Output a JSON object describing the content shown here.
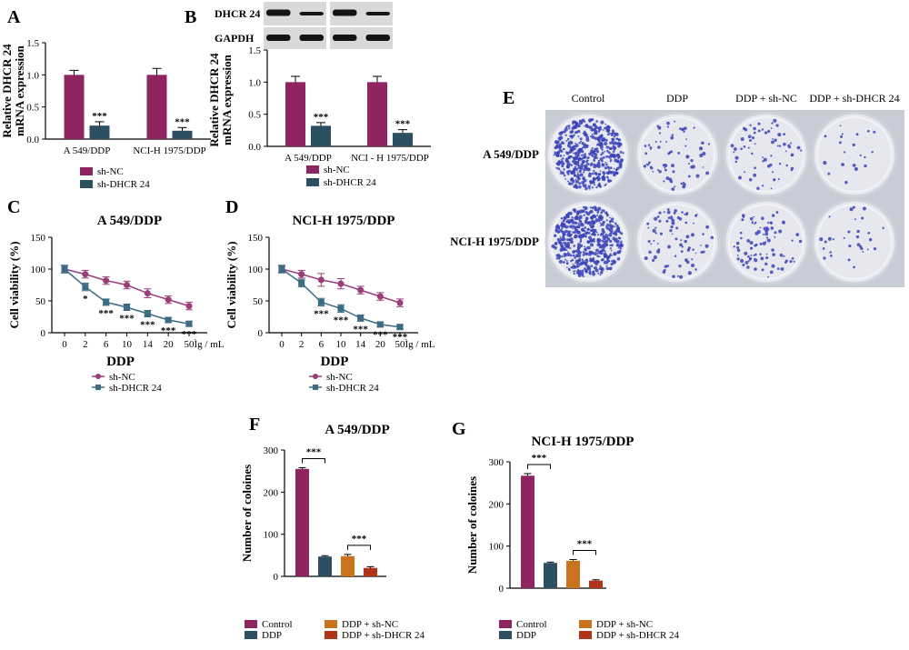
{
  "colors": {
    "sh_nc": "#8e2460",
    "sh_dhcr": "#2c4f61",
    "line_nc": "#9a3e7a",
    "line_dhcr": "#3b6c84",
    "control": "#8e2460",
    "ddp": "#2c4f61",
    "ddp_shnc": "#c9731f",
    "ddp_shdhcr": "#b13418",
    "dish_rim": "#cfd2da",
    "dish_fill": "#e6e8ee",
    "colony": "#3b43b8"
  },
  "panel_labels": {
    "A": "A",
    "B": "B",
    "C": "C",
    "D": "D",
    "E": "E",
    "F": "F",
    "G": "G"
  },
  "blot": {
    "dhcr": "DHCR 24",
    "gapdh": "GAPDH"
  },
  "panel_e": {
    "columns": [
      "Control",
      "DDP",
      "DDP + sh-NC",
      "DDP + sh-DHCR 24"
    ],
    "rows": [
      "A 549/DDP",
      "NCI-H 1975/DDP"
    ],
    "colony_counts": [
      [
        520,
        70,
        65,
        20
      ],
      [
        520,
        80,
        90,
        30
      ]
    ]
  },
  "chart_data": [
    {
      "panel": "A",
      "type": "bar",
      "ylabel": "Relative DHCR 24 mRNA expression",
      "ylim": [
        0,
        1.5
      ],
      "yticks": [
        "0.0",
        "0.5",
        "1.0",
        "1.5"
      ],
      "categories": [
        "A 549/DDP",
        "NCI-H 1975/DDP"
      ],
      "series": [
        {
          "name": "sh-NC",
          "values": [
            1.0,
            1.0
          ],
          "err": [
            0.07,
            0.1
          ]
        },
        {
          "name": "sh-DHCR 24",
          "values": [
            0.21,
            0.13
          ],
          "err": [
            0.06,
            0.05
          ]
        }
      ],
      "annotations": [
        {
          "category": 0,
          "series": 1,
          "text": "***"
        },
        {
          "category": 1,
          "series": 1,
          "text": "***"
        }
      ],
      "legend": [
        "sh-NC",
        "sh-DHCR 24"
      ]
    },
    {
      "panel": "B",
      "type": "bar",
      "ylabel": "Relative DHCR 24 mRNA expression",
      "ylim": [
        0,
        1.5
      ],
      "yticks": [
        "0.0",
        "0.5",
        "1.0",
        "1.5"
      ],
      "categories": [
        "A 549/DDP",
        "NCI - H 1975/DDP"
      ],
      "series": [
        {
          "name": "sh-NC",
          "values": [
            1.0,
            1.0
          ],
          "err": [
            0.09,
            0.09
          ]
        },
        {
          "name": "sh-DHCR 24",
          "values": [
            0.32,
            0.21
          ],
          "err": [
            0.05,
            0.05
          ]
        }
      ],
      "annotations": [
        {
          "category": 0,
          "series": 1,
          "text": "***"
        },
        {
          "category": 1,
          "series": 1,
          "text": "***"
        }
      ],
      "legend": [
        "sh-NC",
        "sh-DHCR 24"
      ]
    },
    {
      "panel": "C",
      "type": "line",
      "title": "A 549/DDP",
      "ylabel": "Cell viability (%)",
      "xlabel": "DDP",
      "xunit": "Ìg / mL",
      "ylim": [
        0,
        150
      ],
      "yticks": [
        "0",
        "50",
        "100",
        "150"
      ],
      "categories": [
        "0",
        "2",
        "6",
        "10",
        "14",
        "20",
        "50"
      ],
      "series": [
        {
          "name": "sh-NC",
          "values": [
            100,
            92,
            82,
            75,
            62,
            52,
            42
          ],
          "err": [
            6,
            6,
            6,
            6,
            7,
            6,
            6
          ]
        },
        {
          "name": "sh-DHCR 24",
          "values": [
            100,
            72,
            48,
            40,
            30,
            20,
            14
          ],
          "err": [
            6,
            6,
            5,
            5,
            5,
            4,
            4
          ]
        }
      ],
      "annotations": [
        "",
        "*",
        "***",
        "***",
        "***",
        "***",
        "***"
      ],
      "legend": [
        "sh-NC",
        "sh-DHCR 24"
      ]
    },
    {
      "panel": "D",
      "type": "line",
      "title": "NCI-H 1975/DDP",
      "ylabel": "Cell viability (%)",
      "xlabel": "DDP",
      "xunit": "Ìg / mL",
      "ylim": [
        0,
        150
      ],
      "yticks": [
        "0",
        "50",
        "100",
        "150"
      ],
      "categories": [
        "0",
        "2",
        "6",
        "10",
        "14",
        "20",
        "50"
      ],
      "series": [
        {
          "name": "sh-NC",
          "values": [
            100,
            92,
            83,
            77,
            67,
            57,
            47
          ],
          "err": [
            5,
            6,
            10,
            8,
            6,
            6,
            6
          ]
        },
        {
          "name": "sh-DHCR 24",
          "values": [
            100,
            78,
            48,
            38,
            23,
            13,
            9
          ],
          "err": [
            6,
            6,
            6,
            6,
            5,
            4,
            3
          ]
        }
      ],
      "annotations": [
        "",
        "",
        "***",
        "***",
        "***",
        "***",
        "***"
      ],
      "legend": [
        "sh-NC",
        "sh-DHCR 24"
      ]
    },
    {
      "panel": "F",
      "type": "bar",
      "title": "A 549/DDP",
      "ylabel": "Number of coloines",
      "ylim": [
        0,
        300
      ],
      "yticks": [
        "0",
        "100",
        "200",
        "300"
      ],
      "categories": [
        "Control",
        "DDP",
        "DDP + sh-NC",
        "DDP + sh-DHCR 24"
      ],
      "values": [
        255,
        47,
        48,
        20
      ],
      "err": [
        3,
        2,
        4,
        3
      ],
      "comparisons": [
        {
          "from": 0,
          "to": 1,
          "text": "***"
        },
        {
          "from": 2,
          "to": 3,
          "text": "***"
        }
      ],
      "legend": [
        "Control",
        "DDP",
        "DDP + sh-NC",
        "DDP + sh-DHCR 24"
      ]
    },
    {
      "panel": "G",
      "type": "bar",
      "title": "NCI-H 1975/DDP",
      "ylabel": "Number of coloines",
      "ylim": [
        0,
        300
      ],
      "yticks": [
        "0",
        "100",
        "200",
        "300"
      ],
      "categories": [
        "Control",
        "DDP",
        "DDP + sh-NC",
        "DDP + sh-DHCR 24"
      ],
      "values": [
        267,
        60,
        65,
        18
      ],
      "err": [
        5,
        2,
        3,
        2
      ],
      "comparisons": [
        {
          "from": 0,
          "to": 1,
          "text": "***"
        },
        {
          "from": 2,
          "to": 3,
          "text": "***"
        }
      ],
      "legend": [
        "Control",
        "DDP",
        "DDP + sh-NC",
        "DDP + sh-DHCR 24"
      ]
    }
  ]
}
